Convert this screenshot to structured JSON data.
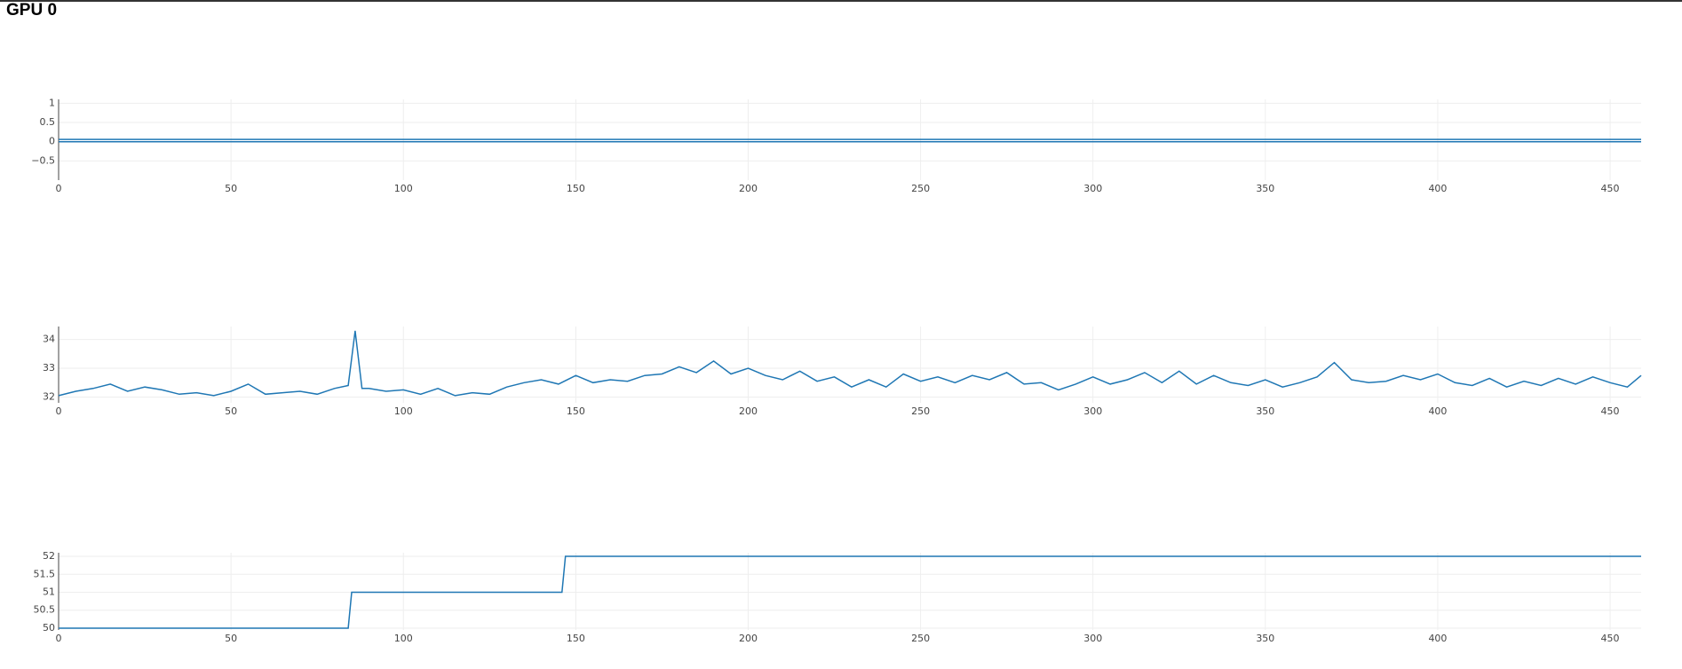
{
  "page_title": "GPU 0",
  "chart_data": [
    {
      "type": "line",
      "xlim": [
        0,
        459
      ],
      "xticks": [
        0,
        50,
        100,
        150,
        200,
        250,
        300,
        350,
        400,
        450
      ],
      "ylim": [
        -1,
        1.1
      ],
      "yticks": [
        1,
        0.5,
        0,
        {
          "value": -0.5,
          "label": "−0.5"
        }
      ],
      "grid": true,
      "series": [
        {
          "color": "#1f77b4",
          "x": [
            0,
            459
          ],
          "values": [
            0.06,
            0.06
          ]
        },
        {
          "color": "#1f77b4",
          "x": [
            0,
            459
          ],
          "values": [
            0,
            0
          ]
        }
      ]
    },
    {
      "type": "line",
      "xlim": [
        0,
        459
      ],
      "xticks": [
        0,
        50,
        100,
        150,
        200,
        250,
        300,
        350,
        400,
        450
      ],
      "ylim": [
        31.8,
        34.45
      ],
      "yticks": [
        32,
        33,
        34
      ],
      "grid": true,
      "series": [
        {
          "color": "#1f77b4",
          "x": [
            0,
            5,
            10,
            15,
            20,
            25,
            30,
            35,
            40,
            45,
            50,
            55,
            60,
            65,
            70,
            75,
            80,
            84,
            86,
            88,
            90,
            95,
            100,
            105,
            110,
            115,
            120,
            125,
            130,
            135,
            140,
            145,
            150,
            155,
            160,
            165,
            170,
            175,
            180,
            185,
            190,
            195,
            200,
            205,
            210,
            215,
            220,
            225,
            230,
            235,
            240,
            245,
            250,
            255,
            260,
            265,
            270,
            275,
            280,
            285,
            290,
            295,
            300,
            305,
            310,
            315,
            320,
            325,
            330,
            335,
            340,
            345,
            350,
            355,
            360,
            365,
            370,
            375,
            380,
            385,
            390,
            395,
            400,
            405,
            410,
            415,
            420,
            425,
            430,
            435,
            440,
            445,
            450,
            455,
            459
          ],
          "values": [
            32.05,
            32.2,
            32.3,
            32.45,
            32.2,
            32.35,
            32.25,
            32.1,
            32.15,
            32.05,
            32.2,
            32.45,
            32.1,
            32.15,
            32.2,
            32.1,
            32.3,
            32.4,
            34.3,
            32.3,
            32.3,
            32.2,
            32.25,
            32.1,
            32.3,
            32.05,
            32.15,
            32.1,
            32.35,
            32.5,
            32.6,
            32.45,
            32.75,
            32.5,
            32.6,
            32.55,
            32.75,
            32.8,
            33.05,
            32.85,
            33.25,
            32.8,
            33.0,
            32.75,
            32.6,
            32.9,
            32.55,
            32.7,
            32.35,
            32.6,
            32.35,
            32.8,
            32.55,
            32.7,
            32.5,
            32.75,
            32.6,
            32.85,
            32.45,
            32.5,
            32.25,
            32.45,
            32.7,
            32.45,
            32.6,
            32.85,
            32.5,
            32.9,
            32.45,
            32.75,
            32.5,
            32.4,
            32.6,
            32.35,
            32.5,
            32.7,
            33.2,
            32.6,
            32.5,
            32.55,
            32.75,
            32.6,
            32.8,
            32.5,
            32.4,
            32.65,
            32.35,
            32.55,
            32.4,
            32.65,
            32.45,
            32.7,
            32.5,
            32.35,
            32.75
          ]
        }
      ]
    },
    {
      "type": "line",
      "xlim": [
        0,
        459
      ],
      "xticks": [
        0,
        50,
        100,
        150,
        200,
        250,
        300,
        350,
        400,
        450
      ],
      "ylim": [
        49.95,
        52.1
      ],
      "yticks": [
        50,
        50.5,
        51,
        51.5,
        52
      ],
      "grid": true,
      "series": [
        {
          "color": "#1f77b4",
          "x": [
            0,
            84,
            85,
            146,
            147,
            459
          ],
          "values": [
            50,
            50,
            51,
            51,
            52,
            52
          ]
        }
      ]
    }
  ]
}
